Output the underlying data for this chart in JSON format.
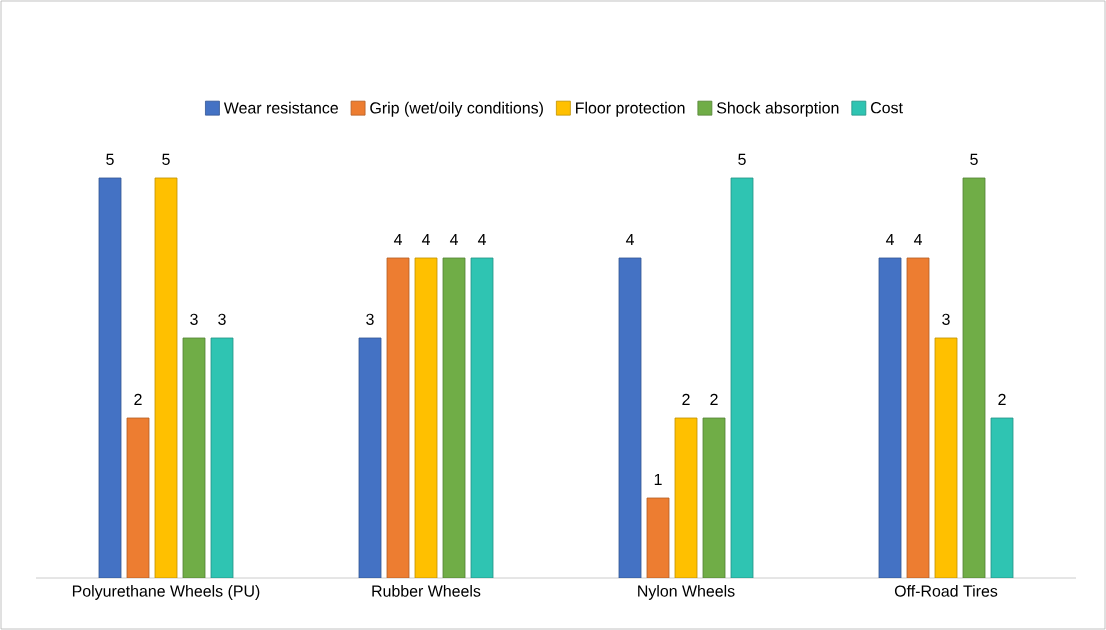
{
  "chart_data": {
    "type": "bar",
    "categories": [
      "Polyurethane Wheels (PU)",
      "Rubber Wheels",
      "Nylon Wheels",
      "Off-Road Tires"
    ],
    "series": [
      {
        "name": "Wear resistance",
        "color": "#4472c4",
        "values": [
          5,
          3,
          4,
          4
        ]
      },
      {
        "name": "Grip (wet/oily conditions)",
        "color": "#ed7d31",
        "values": [
          2,
          4,
          1,
          4
        ]
      },
      {
        "name": "Floor protection",
        "color": "#ffc000",
        "values": [
          5,
          4,
          2,
          3
        ]
      },
      {
        "name": "Shock absorption",
        "color": "#70ad47",
        "values": [
          3,
          4,
          2,
          5
        ]
      },
      {
        "name": "Cost",
        "color": "#2fc4b2",
        "values": [
          3,
          4,
          5,
          2
        ]
      }
    ],
    "data_labels": true,
    "legend": "top"
  }
}
